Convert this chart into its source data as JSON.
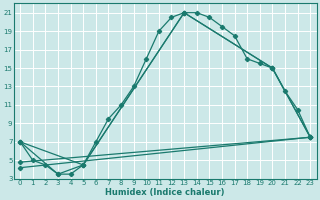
{
  "xlabel": "Humidex (Indice chaleur)",
  "bg_color": "#cce8e8",
  "grid_color": "#ffffff",
  "line_color": "#1a7a6e",
  "xlim": [
    -0.5,
    23.5
  ],
  "ylim": [
    3,
    22
  ],
  "xticks": [
    0,
    1,
    2,
    3,
    4,
    5,
    6,
    7,
    8,
    9,
    10,
    11,
    12,
    13,
    14,
    15,
    16,
    17,
    18,
    19,
    20,
    21,
    22,
    23
  ],
  "yticks": [
    3,
    5,
    7,
    9,
    11,
    13,
    15,
    17,
    19,
    21
  ],
  "xlabel_fontsize": 6.0,
  "tick_fontsize": 5.0,
  "series1_x": [
    0,
    1,
    2,
    3,
    4,
    5,
    6,
    7,
    8,
    9,
    10,
    11,
    12,
    13,
    14,
    15,
    16,
    17,
    18,
    19,
    20,
    21,
    22,
    23
  ],
  "series1_y": [
    7,
    5,
    4.5,
    3.5,
    3.5,
    4.5,
    7.0,
    9.5,
    11.0,
    13.0,
    16.0,
    19.0,
    20.5,
    21.0,
    21.0,
    20.5,
    19.5,
    18.5,
    16.0,
    15.5,
    15.0,
    12.5,
    10.5,
    7.5
  ],
  "series2_x": [
    0,
    3,
    5,
    13,
    20,
    23
  ],
  "series2_y": [
    7,
    3.5,
    4.5,
    21.0,
    15.0,
    7.5
  ],
  "series3_x": [
    0,
    5,
    13,
    20,
    23
  ],
  "series3_y": [
    7,
    4.5,
    21.0,
    15.0,
    7.5
  ],
  "series4_x": [
    0,
    23
  ],
  "series4_y": [
    4.2,
    7.5
  ],
  "series5_x": [
    0,
    23
  ],
  "series5_y": [
    4.8,
    7.5
  ]
}
